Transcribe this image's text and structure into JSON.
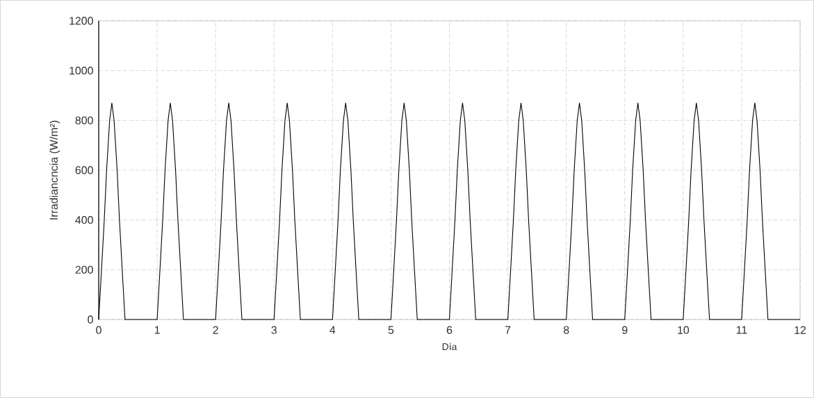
{
  "chart_data": {
    "type": "line",
    "xlabel": "Día",
    "ylabel": "Irradiancncia (W/m²)",
    "xlim": [
      0,
      12
    ],
    "ylim": [
      0,
      1200
    ],
    "xticks": [
      0,
      1,
      2,
      3,
      4,
      5,
      6,
      7,
      8,
      9,
      10,
      11,
      12
    ],
    "yticks": [
      0,
      200,
      400,
      600,
      800,
      1000,
      1200
    ],
    "grid": true,
    "marker": "none",
    "line_style": "solid",
    "series": [
      {
        "color": "#000000",
        "x": [
          0,
          0.048,
          0.095,
          0.135,
          0.187,
          0.225,
          0.263,
          0.315,
          0.355,
          0.402,
          0.45,
          1,
          1.048,
          1.095,
          1.135,
          1.187,
          1.225,
          1.263,
          1.315,
          1.355,
          1.402,
          1.45,
          2,
          2.048,
          2.095,
          2.135,
          2.187,
          2.225,
          2.263,
          2.315,
          2.355,
          2.402,
          2.45,
          3,
          3.048,
          3.095,
          3.135,
          3.187,
          3.225,
          3.263,
          3.315,
          3.355,
          3.402,
          3.45,
          4,
          4.048,
          4.095,
          4.135,
          4.187,
          4.225,
          4.263,
          4.315,
          4.355,
          4.402,
          4.45,
          5,
          5.048,
          5.095,
          5.135,
          5.187,
          5.225,
          5.263,
          5.315,
          5.355,
          5.402,
          5.45,
          6,
          6.048,
          6.095,
          6.135,
          6.187,
          6.225,
          6.263,
          6.315,
          6.355,
          6.402,
          6.45,
          7,
          7.048,
          7.095,
          7.135,
          7.187,
          7.225,
          7.263,
          7.315,
          7.355,
          7.402,
          7.45,
          8,
          8.048,
          8.095,
          8.135,
          8.187,
          8.225,
          8.263,
          8.315,
          8.355,
          8.402,
          8.45,
          9,
          9.048,
          9.095,
          9.135,
          9.187,
          9.225,
          9.263,
          9.315,
          9.355,
          9.402,
          9.45,
          10,
          10.048,
          10.095,
          10.135,
          10.187,
          10.225,
          10.263,
          10.315,
          10.355,
          10.402,
          10.45,
          11,
          11.048,
          11.095,
          11.135,
          11.187,
          11.225,
          11.263,
          11.315,
          11.355,
          11.402,
          11.45,
          12
        ],
        "values": [
          0,
          200,
          400,
          600,
          800,
          870,
          800,
          600,
          400,
          200,
          0,
          0,
          200,
          400,
          600,
          800,
          870,
          800,
          600,
          400,
          200,
          0,
          0,
          200,
          400,
          600,
          800,
          870,
          800,
          600,
          400,
          200,
          0,
          0,
          200,
          400,
          600,
          800,
          870,
          800,
          600,
          400,
          200,
          0,
          0,
          200,
          400,
          600,
          800,
          870,
          800,
          600,
          400,
          200,
          0,
          0,
          200,
          400,
          600,
          800,
          870,
          800,
          600,
          400,
          200,
          0,
          0,
          200,
          400,
          600,
          800,
          870,
          800,
          600,
          400,
          200,
          0,
          0,
          200,
          400,
          600,
          800,
          870,
          800,
          600,
          400,
          200,
          0,
          0,
          200,
          400,
          600,
          800,
          870,
          800,
          600,
          400,
          200,
          0,
          0,
          200,
          400,
          600,
          800,
          870,
          800,
          600,
          400,
          200,
          0,
          0,
          200,
          400,
          600,
          800,
          870,
          800,
          600,
          400,
          200,
          0,
          0,
          200,
          400,
          600,
          800,
          870,
          800,
          600,
          400,
          200,
          0,
          0
        ]
      }
    ]
  }
}
